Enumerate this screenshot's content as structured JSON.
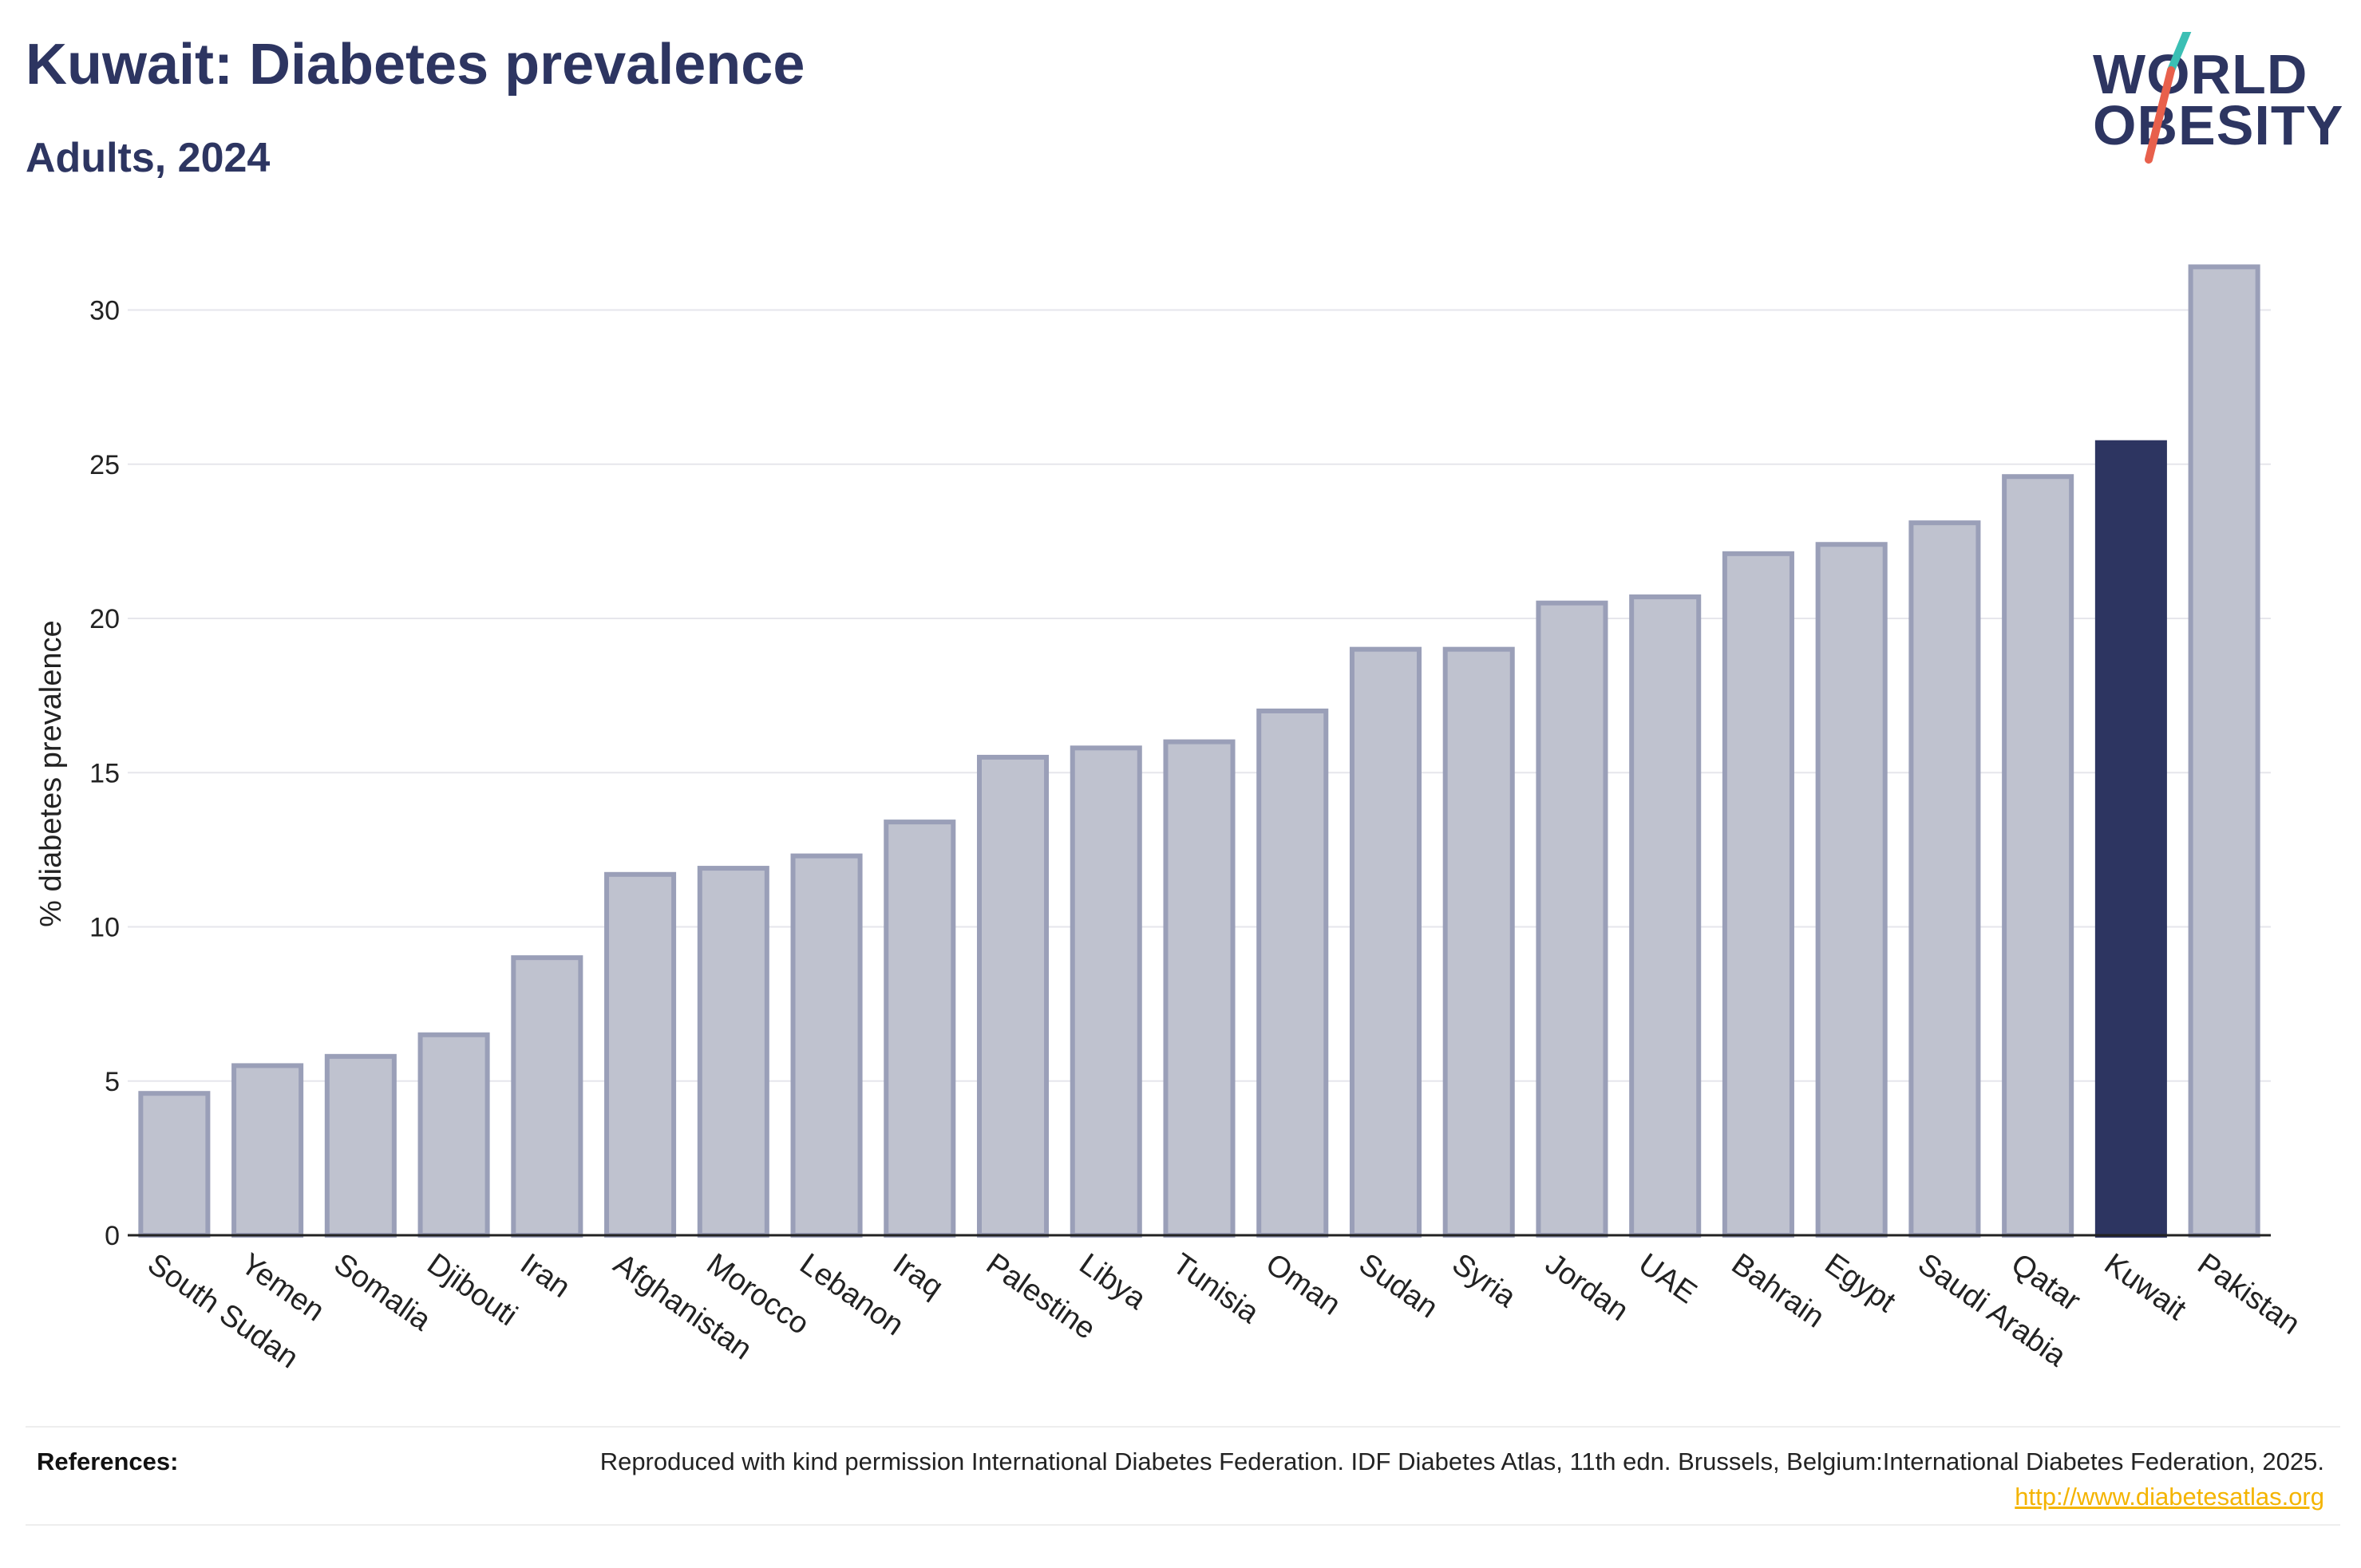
{
  "header": {
    "title": "Kuwait: Diabetes prevalence",
    "subtitle": "Adults, 2024"
  },
  "logo": {
    "line1": "WORLD",
    "line2": "OBESITY",
    "slash_colors": [
      "#3bbfb4",
      "#e8604c"
    ]
  },
  "chart_data": {
    "type": "bar",
    "title": "Kuwait: Diabetes prevalence",
    "subtitle": "Adults, 2024",
    "xlabel": "",
    "ylabel": "% diabetes prevalence",
    "ylim": [
      0,
      32
    ],
    "yticks": [
      0,
      5,
      10,
      15,
      20,
      25,
      30
    ],
    "grid": true,
    "categories": [
      "South Sudan",
      "Yemen",
      "Somalia",
      "Djibouti",
      "Iran",
      "Afghanistan",
      "Morocco",
      "Lebanon",
      "Iraq",
      "Palestine",
      "Libya",
      "Tunisia",
      "Oman",
      "Sudan",
      "Syria",
      "Jordan",
      "UAE",
      "Bahrain",
      "Egypt",
      "Saudi Arabia",
      "Qatar",
      "Kuwait",
      "Pakistan"
    ],
    "values": [
      4.6,
      5.5,
      5.8,
      6.5,
      9.0,
      11.7,
      11.9,
      12.3,
      13.4,
      15.5,
      15.8,
      16.0,
      17.0,
      19.0,
      19.0,
      20.5,
      20.7,
      22.1,
      22.4,
      23.1,
      24.6,
      25.7,
      31.4
    ],
    "highlight": "Kuwait",
    "colors": {
      "bar_fill": "#bfc2cf",
      "bar_stroke": "#9a9fb8",
      "highlight": "#2d3561",
      "grid": "#e6e6ec",
      "axis": "#222222"
    }
  },
  "references": {
    "label": "References:",
    "text": "Reproduced with kind permission International Diabetes Federation. IDF Diabetes Atlas, 11th edn. Brussels, Belgium:International Diabetes Federation, 2025.",
    "link": "http://www.diabetesatlas.org"
  }
}
